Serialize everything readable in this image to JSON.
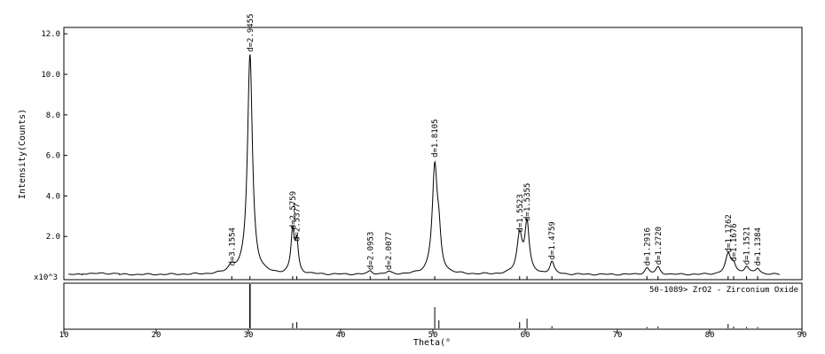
{
  "chart_data": {
    "type": "line",
    "xlabel": "Theta(°",
    "ylabel": "Intensity(Counts)",
    "y_multiplier_label": "x10^3",
    "xlim": [
      10,
      90
    ],
    "ylim": [
      0,
      12.0
    ],
    "x_ticks": [
      10,
      20,
      30,
      40,
      50,
      60,
      70,
      80,
      90
    ],
    "y_ticks": [
      {
        "value": 2.0,
        "label": "2.0"
      },
      {
        "value": 4.0,
        "label": "4.0"
      },
      {
        "value": 6.0,
        "label": "6.0"
      },
      {
        "value": 8.0,
        "label": "8.0"
      },
      {
        "value": 10.0,
        "label": "10.0"
      },
      {
        "value": 12.0,
        "label": "12.0"
      }
    ],
    "baseline": 0.12,
    "peaks": [
      {
        "x": 28.2,
        "height": 0.35,
        "width": 0.45
      },
      {
        "x": 30.17,
        "height": 10.85,
        "width": 0.32
      },
      {
        "x": 34.8,
        "height": 2.1,
        "width": 0.22
      },
      {
        "x": 35.25,
        "height": 1.45,
        "width": 0.2
      },
      {
        "x": 43.2,
        "height": 0.15,
        "width": 0.3
      },
      {
        "x": 45.2,
        "height": 0.12,
        "width": 0.3
      },
      {
        "x": 50.2,
        "height": 5.2,
        "width": 0.33
      },
      {
        "x": 50.65,
        "height": 1.4,
        "width": 0.25
      },
      {
        "x": 59.4,
        "height": 1.9,
        "width": 0.35
      },
      {
        "x": 60.2,
        "height": 2.45,
        "width": 0.28
      },
      {
        "x": 62.9,
        "height": 0.6,
        "width": 0.28
      },
      {
        "x": 73.2,
        "height": 0.3,
        "width": 0.3
      },
      {
        "x": 74.4,
        "height": 0.35,
        "width": 0.28
      },
      {
        "x": 82.0,
        "height": 0.95,
        "width": 0.35
      },
      {
        "x": 82.6,
        "height": 0.45,
        "width": 0.3
      },
      {
        "x": 84.0,
        "height": 0.35,
        "width": 0.3
      },
      {
        "x": 85.2,
        "height": 0.3,
        "width": 0.3
      }
    ],
    "peak_labels": [
      {
        "x": 28.2,
        "y": 0.55,
        "text": "d=3.1554"
      },
      {
        "x": 30.17,
        "y": 11.1,
        "text": "d=2.9455"
      },
      {
        "x": 34.8,
        "y": 2.35,
        "text": "d=2.5759"
      },
      {
        "x": 35.25,
        "y": 1.75,
        "text": "d=2.5377"
      },
      {
        "x": 43.2,
        "y": 0.35,
        "text": "d=2.0953"
      },
      {
        "x": 45.2,
        "y": 0.35,
        "text": "d=2.0077"
      },
      {
        "x": 50.2,
        "y": 5.9,
        "text": "d=1.8105"
      },
      {
        "x": 59.4,
        "y": 2.2,
        "text": "d=1.5523"
      },
      {
        "x": 60.2,
        "y": 2.75,
        "text": "d=1.5355"
      },
      {
        "x": 62.9,
        "y": 0.85,
        "text": "d=1.4759"
      },
      {
        "x": 73.2,
        "y": 0.55,
        "text": "d=1.2916"
      },
      {
        "x": 74.4,
        "y": 0.6,
        "text": "d=1.2720"
      },
      {
        "x": 82.0,
        "y": 1.2,
        "text": "d=1.1762"
      },
      {
        "x": 82.6,
        "y": 0.75,
        "text": "d=1.1676"
      },
      {
        "x": 84.0,
        "y": 0.6,
        "text": "d=1.1521"
      },
      {
        "x": 85.2,
        "y": 0.55,
        "text": "d=1.1384"
      }
    ],
    "reference": {
      "title": "50-1089> ZrO2 - Zirconium Oxide",
      "lines": [
        {
          "x": 30.17,
          "rel": 100
        },
        {
          "x": 34.8,
          "rel": 12
        },
        {
          "x": 35.25,
          "rel": 14
        },
        {
          "x": 50.2,
          "rel": 48
        },
        {
          "x": 50.65,
          "rel": 18
        },
        {
          "x": 59.4,
          "rel": 14
        },
        {
          "x": 60.2,
          "rel": 22
        },
        {
          "x": 62.9,
          "rel": 5
        },
        {
          "x": 73.2,
          "rel": 3
        },
        {
          "x": 74.4,
          "rel": 4
        },
        {
          "x": 82.0,
          "rel": 10
        },
        {
          "x": 82.6,
          "rel": 4
        },
        {
          "x": 84.0,
          "rel": 3
        },
        {
          "x": 85.2,
          "rel": 3
        }
      ]
    }
  }
}
